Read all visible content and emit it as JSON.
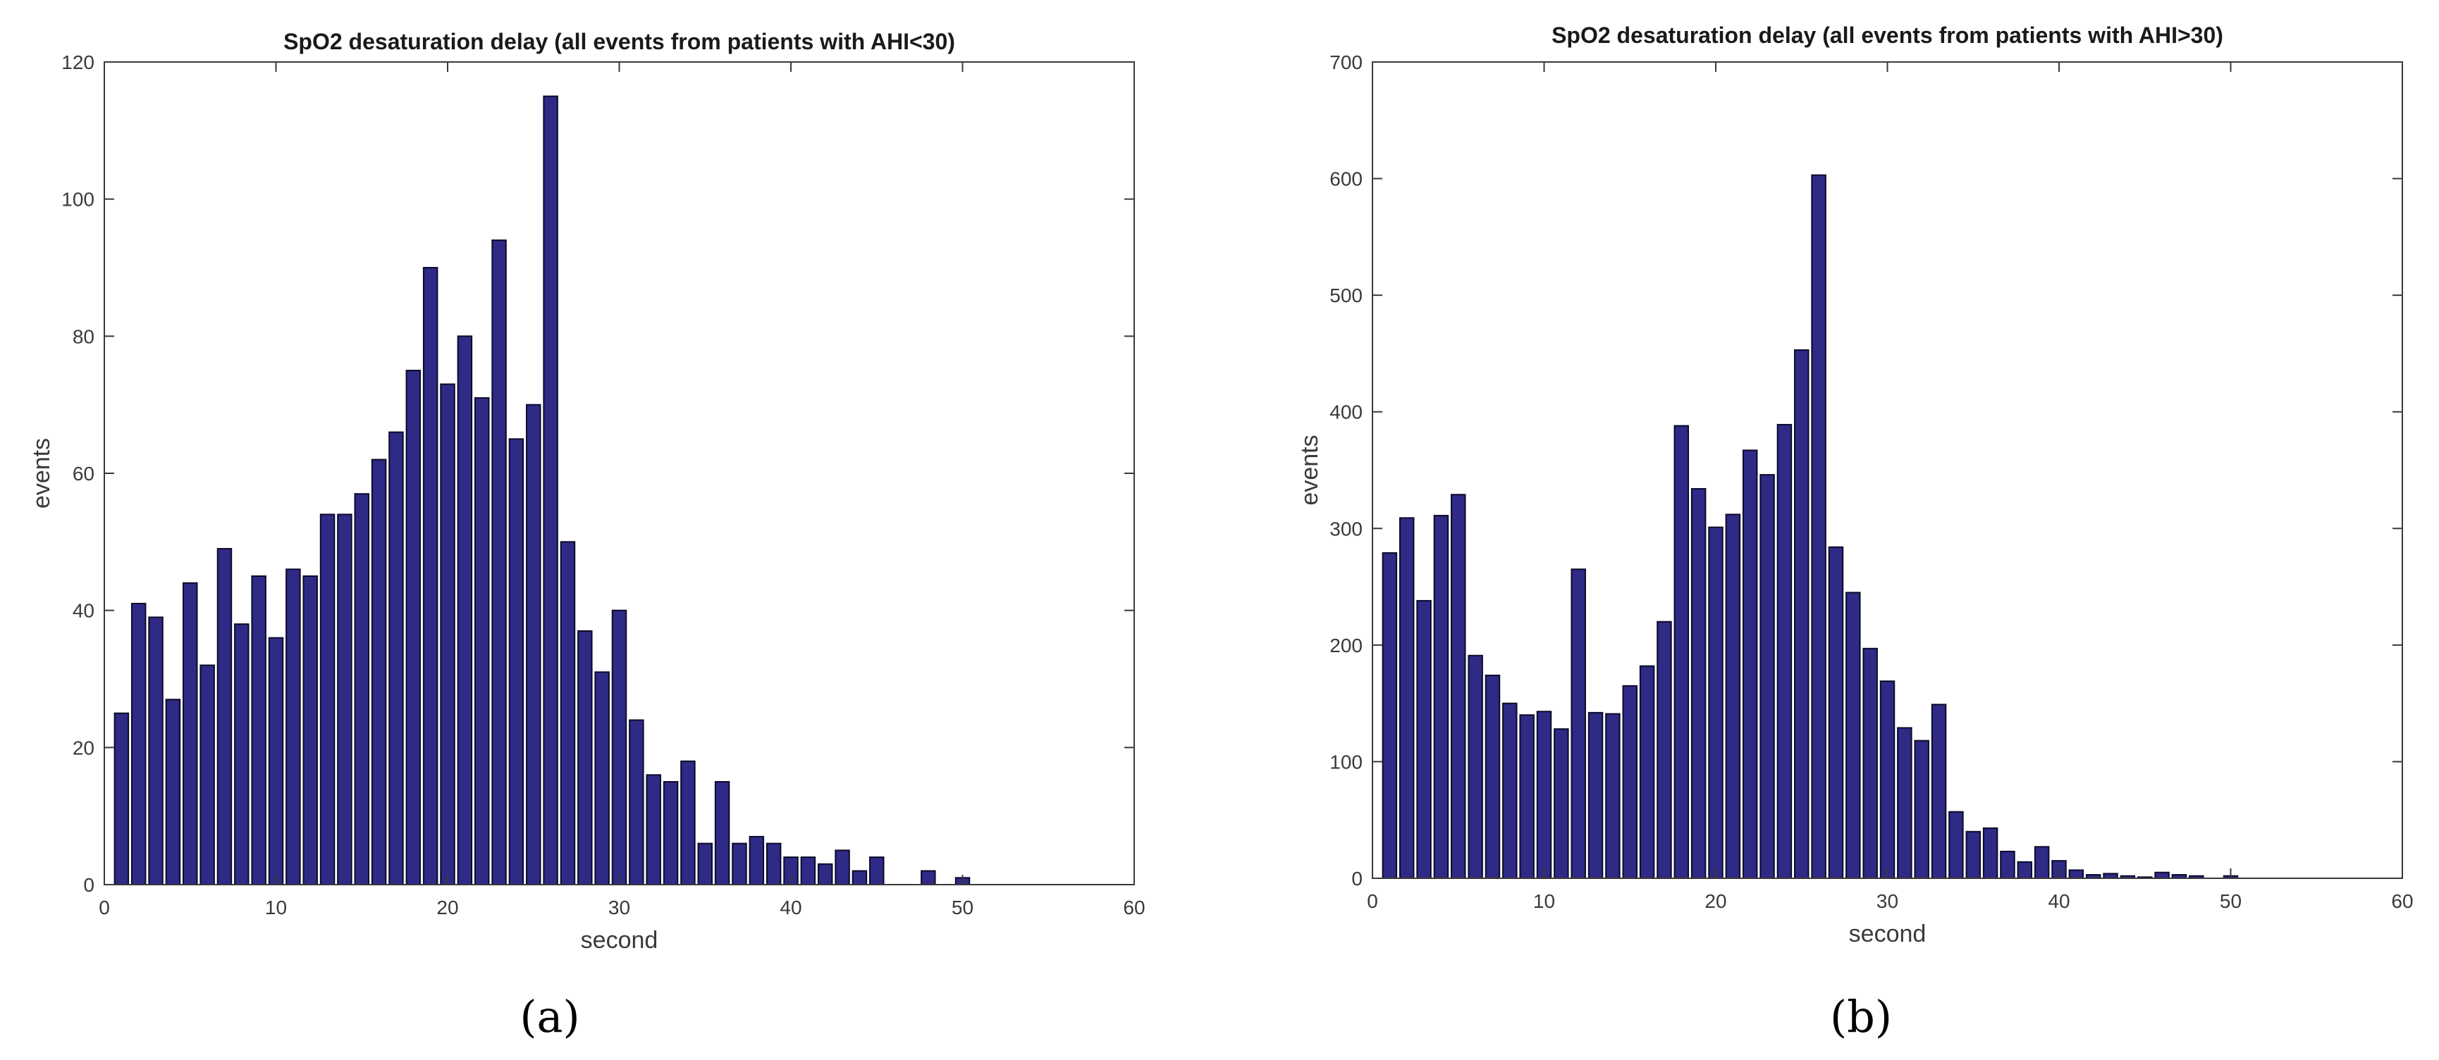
{
  "colors": {
    "bar_fill": "#2E2A85",
    "bar_edge": "#0D0A2B",
    "axis": "#3A3A3A",
    "background": "#FFFFFF"
  },
  "panels": [
    {
      "caption": "(a)"
    },
    {
      "caption": "(b)"
    }
  ],
  "chart_data": [
    {
      "type": "bar",
      "title": "SpO2 desaturation delay (all events from patients with AHI<30)",
      "xlabel": "second",
      "ylabel": "events",
      "xlim": [
        0,
        60
      ],
      "ylim": [
        0,
        120
      ],
      "xticks": [
        0,
        10,
        20,
        30,
        40,
        50,
        60
      ],
      "yticks": [
        0,
        20,
        40,
        60,
        80,
        100,
        120
      ],
      "grid": false,
      "x": [
        1,
        2,
        3,
        4,
        5,
        6,
        7,
        8,
        9,
        10,
        11,
        12,
        13,
        14,
        15,
        16,
        17,
        18,
        19,
        20,
        21,
        22,
        23,
        24,
        25,
        26,
        27,
        28,
        29,
        30,
        31,
        32,
        33,
        34,
        35,
        36,
        37,
        38,
        39,
        40,
        41,
        42,
        43,
        44,
        45,
        46,
        47,
        48,
        49,
        50,
        51,
        52,
        53,
        54,
        55,
        56,
        57,
        58,
        59
      ],
      "values": [
        25,
        41,
        39,
        27,
        44,
        32,
        49,
        38,
        45,
        36,
        46,
        45,
        54,
        54,
        57,
        62,
        66,
        75,
        90,
        73,
        80,
        71,
        94,
        65,
        70,
        115,
        50,
        37,
        31,
        40,
        24,
        16,
        15,
        18,
        6,
        15,
        6,
        7,
        6,
        4,
        4,
        3,
        5,
        2,
        4,
        0,
        0,
        2,
        0,
        1,
        0,
        0,
        0,
        0,
        0,
        0,
        0,
        0,
        0
      ]
    },
    {
      "type": "bar",
      "title": "SpO2 desaturation delay (all events from patients with AHI>30)",
      "xlabel": "second",
      "ylabel": "events",
      "xlim": [
        0,
        60
      ],
      "ylim": [
        0,
        700
      ],
      "xticks": [
        0,
        10,
        20,
        30,
        40,
        50,
        60
      ],
      "yticks": [
        0,
        100,
        200,
        300,
        400,
        500,
        600,
        700
      ],
      "grid": false,
      "x": [
        1,
        2,
        3,
        4,
        5,
        6,
        7,
        8,
        9,
        10,
        11,
        12,
        13,
        14,
        15,
        16,
        17,
        18,
        19,
        20,
        21,
        22,
        23,
        24,
        25,
        26,
        27,
        28,
        29,
        30,
        31,
        32,
        33,
        34,
        35,
        36,
        37,
        38,
        39,
        40,
        41,
        42,
        43,
        44,
        45,
        46,
        47,
        48,
        49,
        50,
        51,
        52,
        53,
        54,
        55,
        56,
        57,
        58,
        59
      ],
      "values": [
        279,
        309,
        238,
        311,
        329,
        191,
        174,
        150,
        140,
        143,
        128,
        265,
        142,
        141,
        165,
        182,
        220,
        388,
        334,
        301,
        312,
        367,
        346,
        389,
        453,
        603,
        284,
        245,
        197,
        169,
        129,
        118,
        149,
        57,
        40,
        43,
        23,
        14,
        27,
        15,
        7,
        3,
        4,
        2,
        1,
        5,
        3,
        2,
        0,
        2,
        0,
        0,
        0,
        0,
        0,
        0,
        0,
        0,
        0
      ]
    }
  ]
}
